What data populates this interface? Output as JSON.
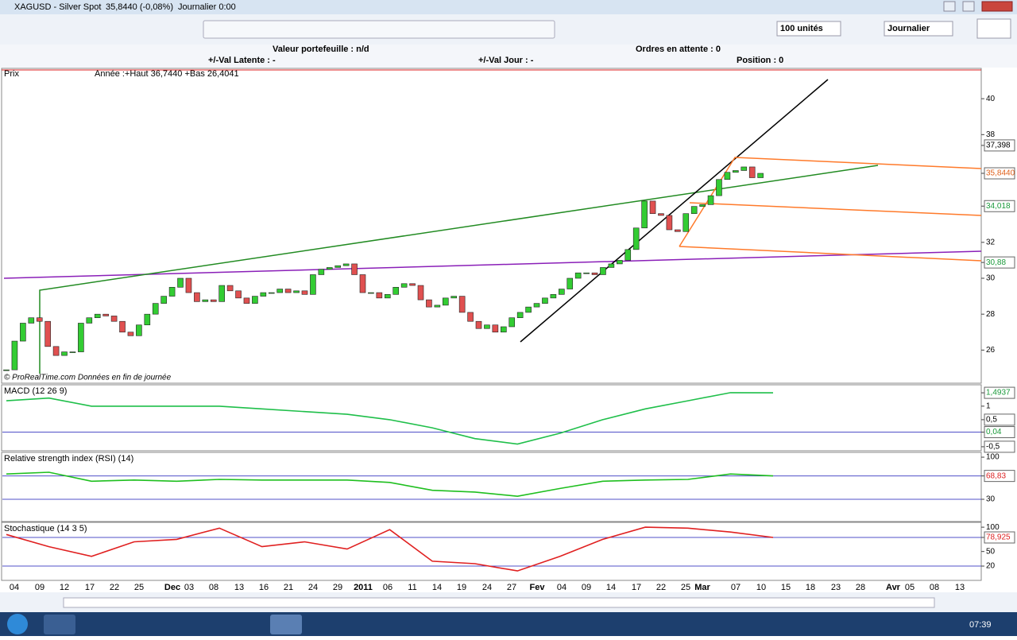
{
  "window": {
    "title": "XAGUSD - Silver Spot",
    "quote": "35,8440 (-0,08%)",
    "period": "Journalier 0:00"
  },
  "toolbar": {
    "quantity": "100 unités",
    "timeframe": "Journalier"
  },
  "portfolio": {
    "value": "Valeur portefeuille : n/d",
    "pending": "Ordres en attente : 0",
    "latent": "+/-Val Latente : -",
    "day": "+/-Val Jour : -",
    "position": "Position : 0"
  },
  "price_panel": {
    "label": "Prix",
    "info": "Année :+Haut 36,7440 +Bas 26,4041",
    "source": "© ProRealTime.com  Données en fin de journée",
    "ylim": [
      24.2,
      41.6
    ],
    "yticks": [
      40,
      38,
      {
        "value": 37.398,
        "label": "37,398"
      },
      {
        "value": 35.844,
        "label": "35,8440"
      },
      {
        "value": 34.018,
        "label": "34,018"
      },
      32,
      {
        "value": 30.88,
        "label": "30,88"
      },
      30,
      28,
      26
    ],
    "closes": [
      24.9,
      26.5,
      27.5,
      27.8,
      27.6,
      26.2,
      25.7,
      25.9,
      25.9,
      27.5,
      27.8,
      28.0,
      27.9,
      27.6,
      27.0,
      26.8,
      27.4,
      28.0,
      28.6,
      29.0,
      29.5,
      30.0,
      29.2,
      28.7,
      28.8,
      28.7,
      29.6,
      29.3,
      28.9,
      28.6,
      29.0,
      29.2,
      29.2,
      29.4,
      29.2,
      29.3,
      29.1,
      30.2,
      30.5,
      30.6,
      30.7,
      30.8,
      30.2,
      29.2,
      29.2,
      28.9,
      29.1,
      29.5,
      29.7,
      29.6,
      28.8,
      28.4,
      28.5,
      28.9,
      29.0,
      28.1,
      27.6,
      27.2,
      27.4,
      27.0,
      27.3,
      27.8,
      28.1,
      28.4,
      28.6,
      28.9,
      29.1,
      29.4,
      30.0,
      30.3,
      30.3,
      30.2,
      30.6,
      30.8,
      31.0,
      31.6,
      32.8,
      34.3,
      33.6,
      33.5,
      32.7,
      32.6,
      33.6,
      34.0,
      34.1,
      34.6,
      35.5,
      35.9,
      36.0,
      36.2,
      35.6,
      35.844
    ]
  },
  "macd_panel": {
    "label": "MACD (12 26 9)",
    "ylim": [
      -0.62,
      1.79
    ],
    "yticks": [
      {
        "value": 1.4937,
        "label": "1,4937"
      },
      1,
      {
        "value": 0.5,
        "label": "0,5"
      },
      {
        "value": 0.04,
        "label": "0,04"
      },
      {
        "value": -0.5,
        "label": "-0,5"
      }
    ],
    "values": [
      1.2,
      1.3,
      1.0,
      1.0,
      1.0,
      1.0,
      0.9,
      0.8,
      0.7,
      0.5,
      0.2,
      -0.2,
      -0.4,
      0.0,
      0.5,
      0.9,
      1.2,
      1.5,
      1.4937
    ]
  },
  "rsi_panel": {
    "label": "Relative strength index (RSI) (14)",
    "ylim": [
      -7,
      108
    ],
    "yticks": [
      100,
      {
        "value": 68.83,
        "label": "68,83"
      },
      30
    ],
    "values": [
      72,
      75,
      60,
      62,
      60,
      63,
      62,
      62,
      62,
      58,
      45,
      42,
      35,
      48,
      60,
      62,
      63,
      72,
      68.83
    ]
  },
  "stoch_panel": {
    "label": "Stochastique (14 3 5)",
    "ylim": [
      -9.4,
      110
    ],
    "yticks": [
      100,
      {
        "value": 78.925,
        "label": "78,925"
      },
      50,
      20
    ],
    "values": [
      85,
      60,
      40,
      70,
      75,
      98,
      60,
      70,
      55,
      95,
      30,
      25,
      10,
      40,
      75,
      100,
      98,
      90,
      78.925
    ]
  },
  "x_axis": {
    "labels": [
      "04",
      "09",
      "12",
      "17",
      "22",
      "25",
      "Dec",
      "03",
      "08",
      "13",
      "16",
      "21",
      "24",
      "29",
      "2011",
      "06",
      "11",
      "14",
      "19",
      "24",
      "27",
      "Fev",
      "04",
      "09",
      "14",
      "17",
      "22",
      "25",
      "Mar",
      "07",
      "10",
      "15",
      "18",
      "23",
      "28",
      "Avr",
      "05",
      "08",
      "13"
    ]
  },
  "taskbar": {
    "time": "07:39"
  }
}
